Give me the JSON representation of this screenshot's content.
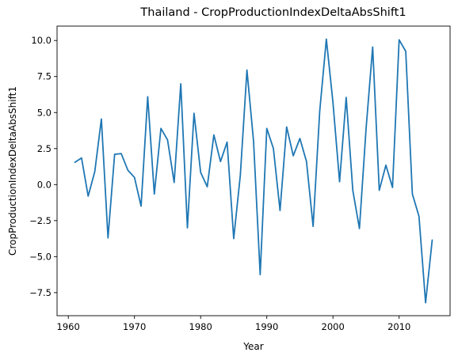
{
  "chart_data": {
    "type": "line",
    "title": "Thailand - CropProductionIndexDeltaAbsShift1",
    "xlabel": "Year",
    "ylabel": "CropProductionIndexDeltaAbsShift1",
    "xlim": [
      1958.3,
      2017.7
    ],
    "ylim": [
      -9.1,
      11.0
    ],
    "xticks": [
      1960,
      1970,
      1980,
      1990,
      2000,
      2010
    ],
    "yticks": [
      -7.5,
      -5.0,
      -2.5,
      0.0,
      2.5,
      5.0,
      7.5,
      10.0
    ],
    "xtick_labels": [
      "1960",
      "1970",
      "1980",
      "1990",
      "2000",
      "2010"
    ],
    "ytick_labels": [
      "−7.5",
      "−5.0",
      "−2.5",
      "0.0",
      "2.5",
      "5.0",
      "7.5",
      "10.0"
    ],
    "grid": false,
    "color": "#1f77b4",
    "series": [
      {
        "x": [
          1961,
          1962,
          1963,
          1964,
          1965,
          1966,
          1967,
          1968,
          1969,
          1970,
          1971,
          1972,
          1973,
          1974,
          1975,
          1976,
          1977,
          1978,
          1979,
          1980,
          1981,
          1982,
          1983,
          1984,
          1985,
          1986,
          1987,
          1988,
          1989,
          1990,
          1991,
          1992,
          1993,
          1994,
          1995,
          1996,
          1997,
          1998,
          1999,
          2000,
          2001,
          2002,
          2003,
          2004,
          2005,
          2006,
          2007,
          2008,
          2009,
          2010,
          2011,
          2012,
          2013,
          2014,
          2015
        ],
        "values": [
          1.55,
          1.85,
          -0.8,
          0.9,
          4.55,
          -3.7,
          2.1,
          2.15,
          1.0,
          0.5,
          -1.5,
          6.1,
          -0.65,
          3.9,
          3.1,
          0.15,
          7.0,
          -3.0,
          4.95,
          0.85,
          -0.15,
          3.45,
          1.6,
          2.95,
          -3.75,
          0.65,
          7.95,
          3.0,
          -6.25,
          3.9,
          2.5,
          -1.8,
          4.0,
          2.0,
          3.2,
          1.6,
          -2.9,
          5.1,
          10.1,
          5.7,
          0.2,
          6.05,
          -0.4,
          -3.05,
          3.85,
          9.55,
          -0.4,
          1.35,
          -0.2,
          10.05,
          9.25,
          -0.65,
          -2.2,
          -8.2,
          -3.85
        ]
      }
    ]
  }
}
